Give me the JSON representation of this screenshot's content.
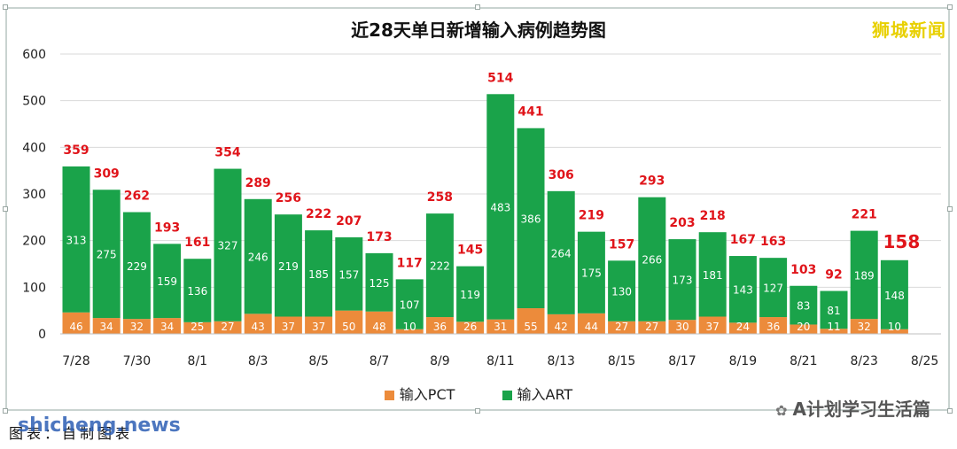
{
  "title": "近28天单日新增输入病例趋势图",
  "brand": "狮城新闻",
  "caption": "图表：自制图表",
  "watermark": "shicheng.news",
  "wechat": "A计划学习生活篇",
  "colors": {
    "pct": "#ec8b3b",
    "art": "#1aa34a",
    "total_label": "#e0141a"
  },
  "legend": {
    "pct": "输入PCT",
    "art": "输入ART"
  },
  "chart_data": {
    "type": "bar",
    "stacked": true,
    "title": "近28天单日新增输入病例趋势图",
    "ylim": [
      0,
      600
    ],
    "yticks": [
      "0",
      "100",
      "200",
      "300",
      "400",
      "500",
      "600"
    ],
    "grid": true,
    "legend_position": "bottom",
    "x_tick_labels": [
      "7/28",
      "7/30",
      "8/1",
      "8/3",
      "8/5",
      "8/7",
      "8/9",
      "8/11",
      "8/13",
      "8/15",
      "8/17",
      "8/19",
      "8/21",
      "8/23",
      "8/25"
    ],
    "categories": [
      "7/28",
      "7/29",
      "7/30",
      "7/31",
      "8/1",
      "8/2",
      "8/3",
      "8/4",
      "8/5",
      "8/6",
      "8/7",
      "8/8",
      "8/9",
      "8/10",
      "8/11",
      "8/12",
      "8/13",
      "8/14",
      "8/15",
      "8/16",
      "8/17",
      "8/18",
      "8/19",
      "8/20",
      "8/21",
      "8/22",
      "8/23",
      "8/24"
    ],
    "series": [
      {
        "name": "输入PCT",
        "values": [
          46,
          34,
          32,
          34,
          25,
          27,
          43,
          37,
          37,
          50,
          48,
          10,
          36,
          26,
          31,
          55,
          42,
          44,
          27,
          27,
          30,
          37,
          24,
          36,
          20,
          11,
          32,
          10
        ]
      },
      {
        "name": "输入ART",
        "values": [
          313,
          275,
          229,
          159,
          136,
          327,
          246,
          219,
          185,
          157,
          125,
          107,
          222,
          119,
          483,
          386,
          264,
          175,
          130,
          266,
          173,
          181,
          143,
          127,
          83,
          81,
          189,
          148
        ]
      }
    ],
    "totals": [
      359,
      309,
      262,
      193,
      161,
      354,
      289,
      256,
      222,
      207,
      173,
      117,
      258,
      145,
      514,
      441,
      306,
      219,
      157,
      293,
      203,
      218,
      167,
      163,
      103,
      92,
      221,
      158
    ]
  }
}
